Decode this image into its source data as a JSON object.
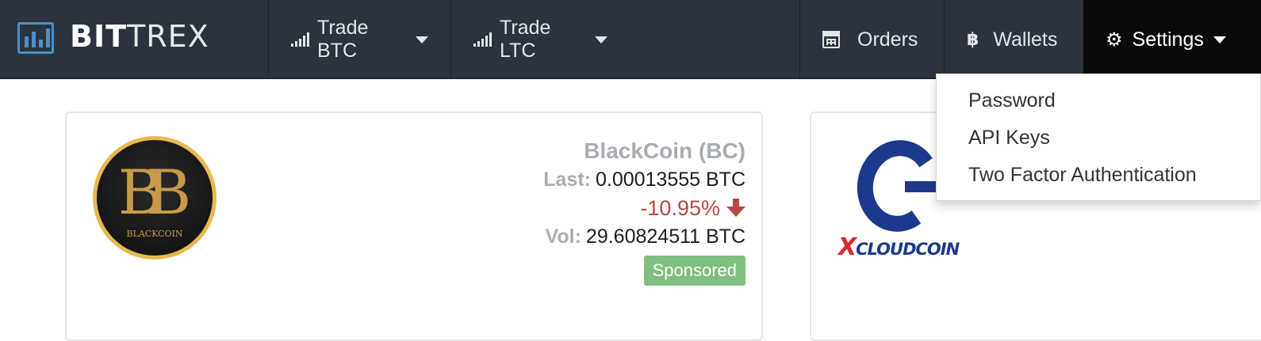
{
  "brand": {
    "bold": "BIT",
    "light": "TREX"
  },
  "nav": {
    "trade_btc": "Trade BTC",
    "trade_ltc": "Trade LTC",
    "orders": "Orders",
    "wallets": "Wallets",
    "settings": "Settings"
  },
  "settings_menu": {
    "items": [
      "Password",
      "API Keys",
      "Two Factor Authentication"
    ]
  },
  "cards": [
    {
      "name": "BlackCoin (BC)",
      "logo_text": "BLACKCOIN",
      "last_label": "Last:",
      "last_value": "0.00013555 BTC",
      "change": "-10.95%",
      "vol_label": "Vol:",
      "vol_value": "29.60824511 BTC",
      "badge": "Sponsored"
    },
    {
      "logo_text_x": "X",
      "logo_text_rest": "CLOUDCOIN"
    }
  ],
  "colors": {
    "navbar_bg": "#2b333e",
    "active_nav_bg": "#0a0a0a",
    "brand_blue": "#4a90c8",
    "negative": "#b84843",
    "badge_green": "#7fbf7f",
    "muted_label": "#a9adb2"
  },
  "icons": {
    "brand": "bar-chart-icon",
    "trade": "signal-bars-icon",
    "orders": "calendar-icon",
    "wallets": "bitcoin-icon",
    "settings": "gear-icon",
    "change": "arrow-down-icon"
  }
}
